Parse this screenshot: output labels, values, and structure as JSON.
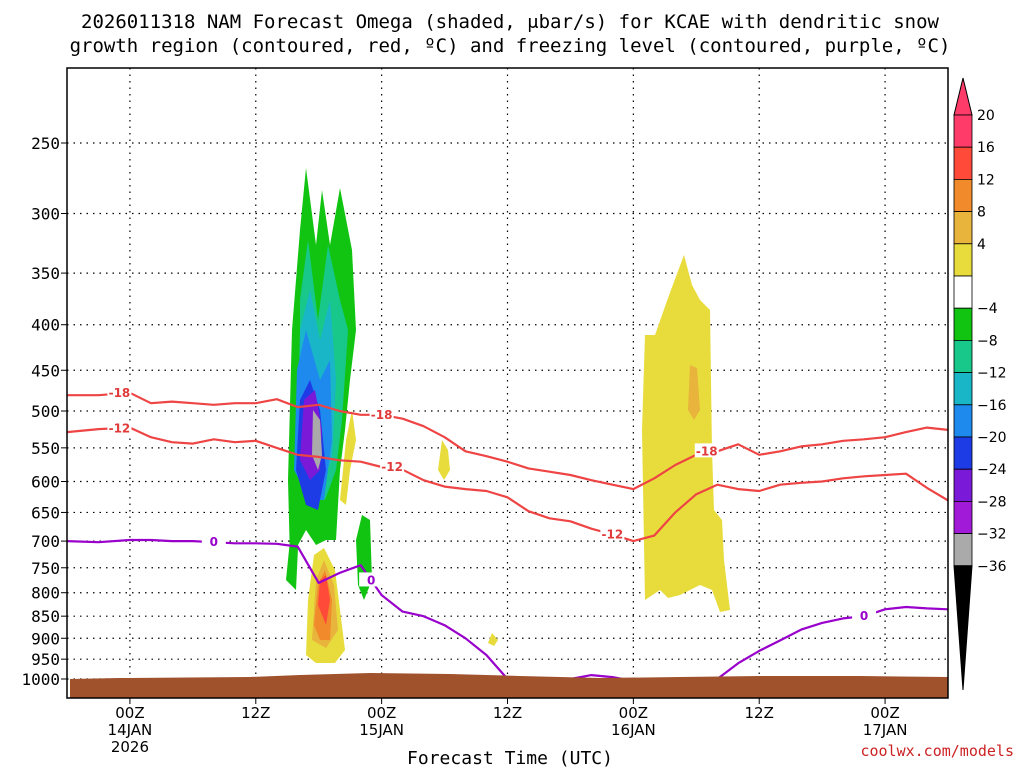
{
  "chart_data": {
    "type": "heatmap",
    "title_line1": "2026011318 NAM Forecast Omega (shaded, μbar/s) for KCAE with dendritic snow",
    "title_line2": "growth region (contoured, red, ºC) and freezing level (contoured, purple, ºC)",
    "xlabel": "Forecast Time (UTC)",
    "ylabel": "",
    "credit": "coolwx.com/models",
    "y_ticks": [
      "250",
      "300",
      "350",
      "400",
      "450",
      "500",
      "550",
      "600",
      "650",
      "700",
      "750",
      "800",
      "850",
      "900",
      "950",
      "1000"
    ],
    "x_ticks": [
      {
        "hour": 0,
        "line1": "00Z",
        "line2": "14JAN",
        "line3": "2026"
      },
      {
        "hour": 12,
        "line1": "12Z",
        "line2": "",
        "line3": ""
      },
      {
        "hour": 24,
        "line1": "00Z",
        "line2": "15JAN",
        "line3": ""
      },
      {
        "hour": 36,
        "line1": "12Z",
        "line2": "",
        "line3": ""
      },
      {
        "hour": 48,
        "line1": "00Z",
        "line2": "16JAN",
        "line3": ""
      },
      {
        "hour": 60,
        "line1": "12Z",
        "line2": "",
        "line3": ""
      },
      {
        "hour": 72,
        "line1": "00Z",
        "line2": "17JAN",
        "line3": ""
      }
    ],
    "x_range_hours": [
      -6,
      78
    ],
    "y_range_hpa": [
      200,
      1020
    ],
    "colorbar": {
      "labels": [
        "20",
        "16",
        "12",
        "8",
        "4",
        "−4",
        "−8",
        "−12",
        "−16",
        "−20",
        "−24",
        "−28",
        "−32",
        "−36"
      ],
      "colors": [
        "#ff3b6a",
        "#ff4a3a",
        "#f08a2a",
        "#e8b43c",
        "#e8dc3c",
        "#ffffff",
        "#11c411",
        "#18c88a",
        "#19b6c8",
        "#1e8aee",
        "#1e3ce6",
        "#7a1ad8",
        "#a01ad8",
        "#aaaaaa"
      ]
    },
    "contour_labels": {
      "red_neg18": "-18",
      "red_neg12": "-12",
      "purple_zero": "0"
    },
    "series": [
      {
        "name": "dendritic -18C (hPa)",
        "hours": [
          -6,
          -3,
          0,
          2,
          4,
          6,
          8,
          10,
          12,
          14,
          16,
          18,
          20,
          22,
          24,
          26,
          28,
          30,
          32,
          34,
          36,
          38,
          40,
          42,
          44,
          46,
          48,
          50,
          52,
          54,
          56,
          58,
          60,
          62,
          64,
          66,
          68,
          70,
          72,
          74,
          76,
          78
        ],
        "values": [
          480,
          480,
          477,
          490,
          488,
          490,
          492,
          490,
          490,
          485,
          495,
          492,
          500,
          505,
          505,
          510,
          520,
          535,
          555,
          562,
          570,
          580,
          585,
          590,
          598,
          605,
          612,
          595,
          575,
          560,
          555,
          545,
          560,
          555,
          548,
          545,
          540,
          538,
          535,
          528,
          522,
          525
        ]
      },
      {
        "name": "dendritic -12C (hPa)",
        "hours": [
          -6,
          -3,
          0,
          2,
          4,
          6,
          8,
          10,
          12,
          14,
          16,
          18,
          20,
          22,
          24,
          26,
          28,
          30,
          32,
          34,
          36,
          38,
          40,
          42,
          44,
          46,
          48,
          50,
          52,
          54,
          56,
          58,
          60,
          62,
          64,
          66,
          68,
          70,
          72,
          74,
          76,
          78
        ],
        "values": [
          528,
          524,
          522,
          535,
          542,
          544,
          538,
          542,
          540,
          550,
          560,
          563,
          568,
          570,
          578,
          582,
          598,
          608,
          612,
          615,
          625,
          648,
          660,
          665,
          678,
          688,
          700,
          690,
          650,
          620,
          605,
          612,
          615,
          605,
          602,
          600,
          595,
          592,
          590,
          588,
          610,
          630
        ]
      },
      {
        "name": "freezing level 0C (hPa)",
        "hours": [
          -6,
          -3,
          0,
          2,
          4,
          6,
          8,
          10,
          12,
          14,
          16,
          18,
          20,
          22,
          24,
          26,
          28,
          30,
          32,
          34,
          36,
          38,
          40,
          42,
          44,
          46,
          48,
          50,
          52,
          54,
          56,
          58,
          60,
          62,
          64,
          66,
          68,
          70,
          72,
          74,
          76,
          78
        ],
        "values": [
          700,
          702,
          698,
          698,
          700,
          700,
          702,
          704,
          704,
          705,
          710,
          780,
          760,
          745,
          805,
          840,
          850,
          870,
          900,
          940,
          1000,
          1005,
          1002,
          1000,
          990,
          995,
          1005,
          1003,
          1000,
          998,
          1000,
          960,
          930,
          905,
          880,
          865,
          855,
          850,
          835,
          830,
          833,
          835
        ]
      }
    ]
  }
}
